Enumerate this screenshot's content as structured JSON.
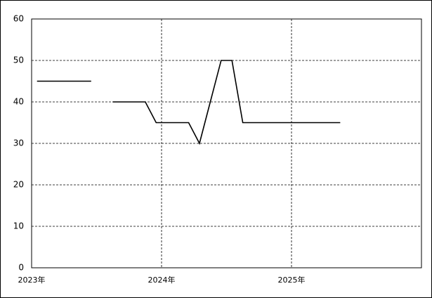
{
  "chart_data": {
    "type": "line",
    "categories": [
      "2023年",
      null,
      null,
      null,
      null,
      null,
      null,
      null,
      null,
      null,
      null,
      null,
      "2024年",
      null,
      null,
      null,
      null,
      null,
      null,
      null,
      null,
      null,
      null,
      null,
      "2025年",
      null,
      null,
      null,
      null,
      null,
      null,
      null,
      null,
      null,
      null,
      null
    ],
    "values": [
      45,
      45,
      45,
      45,
      45,
      45,
      null,
      40,
      40,
      40,
      40,
      35,
      35,
      35,
      35,
      30,
      40,
      50,
      50,
      35,
      35,
      35,
      35,
      35,
      35,
      35,
      35,
      35,
      35,
      null,
      null,
      null,
      null,
      null,
      null,
      null
    ],
    "color": "#000000",
    "ylim": [
      0,
      60
    ],
    "yticks": [
      0,
      10,
      20,
      30,
      40,
      50,
      60
    ],
    "grid": true
  }
}
